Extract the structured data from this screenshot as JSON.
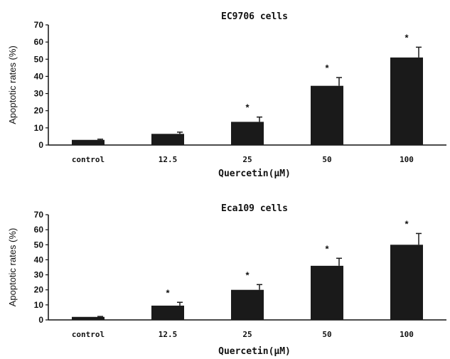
{
  "chart_data": [
    {
      "type": "bar",
      "title": "EC9706 cells",
      "xlabel": "Quercetin(μM)",
      "ylabel": "Apoptotic rates (%)",
      "categories": [
        "control",
        "12.5",
        "25",
        "50",
        "100"
      ],
      "values": [
        3,
        6.5,
        13.5,
        34.5,
        51
      ],
      "errors": [
        0.4,
        1.0,
        2.8,
        4.8,
        6.0
      ],
      "significance": [
        "",
        "",
        "*",
        "*",
        "*"
      ],
      "ylim": [
        0,
        70
      ],
      "yticks": [
        0,
        10,
        20,
        30,
        40,
        50,
        60,
        70
      ],
      "bar_color": "#1a1a1a"
    },
    {
      "type": "bar",
      "title": "Eca109 cells",
      "xlabel": "Quercetin(μM)",
      "ylabel": "Apoptotic rates (%)",
      "categories": [
        "control",
        "12.5",
        "25",
        "50",
        "100"
      ],
      "values": [
        2,
        9.5,
        20,
        36,
        50
      ],
      "errors": [
        0.3,
        2.2,
        3.5,
        5.0,
        7.5
      ],
      "significance": [
        "",
        "*",
        "*",
        "*",
        "*"
      ],
      "ylim": [
        0,
        70
      ],
      "yticks": [
        0,
        10,
        20,
        30,
        40,
        50,
        60,
        70
      ],
      "bar_color": "#1a1a1a"
    }
  ]
}
